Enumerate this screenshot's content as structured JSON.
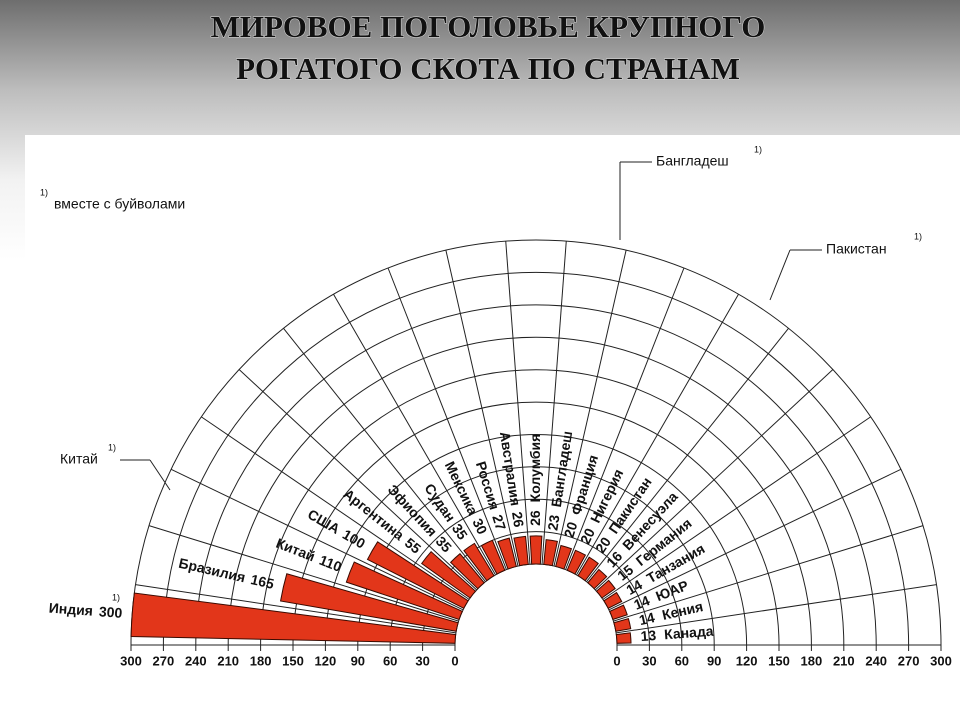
{
  "chart_data": {
    "type": "radial",
    "title_lines": [
      "МИРОВОЕ ПОГОЛОВЬЕ КРУПНОГО",
      "РОГАТОГО СКОТА ПО СТРАНАМ"
    ],
    "categories": [
      "Индия",
      "Бразилия",
      "Китай",
      "США",
      "Аргентина",
      "Эфиопия",
      "Судан",
      "Мексика",
      "Россия",
      "Австралия",
      "Колумбия",
      "Бангладеш",
      "Франция",
      "Нигерия",
      "Пакистан",
      "Венесуэла",
      "Германия",
      "Танзания",
      "ЮАР",
      "Кения",
      "Канада"
    ],
    "values": [
      300,
      165,
      110,
      100,
      55,
      35,
      35,
      30,
      27,
      26,
      26,
      23,
      20,
      20,
      20,
      16,
      15,
      14,
      14,
      14,
      13
    ],
    "color": "#e2361a",
    "xlim": [
      0,
      300
    ],
    "xticks": [
      0,
      30,
      60,
      90,
      120,
      150,
      180,
      210,
      240,
      270,
      300
    ],
    "grid": true,
    "footnote_marker": "1)",
    "footnote": "вместе с буйволами",
    "callouts": [
      "Бангладеш",
      "Пакистан",
      "Китай"
    ]
  }
}
